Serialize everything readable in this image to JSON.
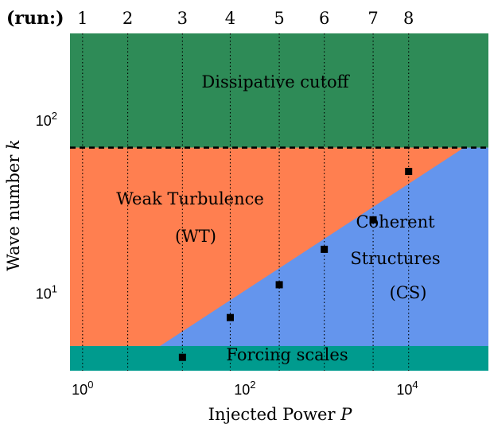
{
  "chart_data": {
    "type": "area",
    "xscale": "log",
    "yscale": "log",
    "xlabel": "Injected Power P",
    "xlabel_parts": [
      "Injected Power ",
      "P"
    ],
    "ylabel": "Wave number k",
    "ylabel_parts": [
      "Wave number ",
      "k"
    ],
    "xlim": [
      0.7,
      100000
    ],
    "ylim": [
      3.6,
      320
    ],
    "x_ticks": [
      {
        "value": 1,
        "base": "10",
        "exp": "0"
      },
      {
        "value": 100,
        "base": "10",
        "exp": "2"
      },
      {
        "value": 10000,
        "base": "10",
        "exp": "4"
      }
    ],
    "y_ticks": [
      {
        "value": 10,
        "base": "10",
        "exp": "1"
      },
      {
        "value": 100,
        "base": "10",
        "exp": "2"
      }
    ],
    "run_header": "(run:)",
    "runs": [
      {
        "label": "1",
        "P": 1.0
      },
      {
        "label": "2",
        "P": 3.6
      },
      {
        "label": "3",
        "P": 17
      },
      {
        "label": "4",
        "P": 66
      },
      {
        "label": "5",
        "P": 265
      },
      {
        "label": "6",
        "P": 950
      },
      {
        "label": "7",
        "P": 3800
      },
      {
        "label": "8",
        "P": 10400
      }
    ],
    "points": [
      {
        "P": 17,
        "k": 4.3
      },
      {
        "P": 66,
        "k": 7.3
      },
      {
        "P": 265,
        "k": 11.3
      },
      {
        "P": 950,
        "k": 18.1
      },
      {
        "P": 3800,
        "k": 26.8
      },
      {
        "P": 10400,
        "k": 51.0
      }
    ],
    "dissipative_k": 70,
    "forcing_k": 5.0,
    "cs_boundary": [
      [
        9,
        5.0
      ],
      [
        50000,
        70
      ]
    ],
    "regions": [
      {
        "name": "Dissipative cutoff",
        "color": "#2e8b57"
      },
      {
        "name": "Weak Turbulence (WT)",
        "color": "#ff7f50"
      },
      {
        "name": "Coherent Structures (CS)",
        "color": "#6495ed"
      },
      {
        "name": "Forcing scales",
        "color": "#009b8e"
      }
    ],
    "labels": {
      "dissipative": "Dissipative cutoff",
      "wt_line1": "Weak Turbulence",
      "wt_line2": "(WT)",
      "cs_line1": "Coherent",
      "cs_line2": "Structures",
      "cs_line3": "(CS)",
      "forcing": "Forcing scales"
    }
  }
}
